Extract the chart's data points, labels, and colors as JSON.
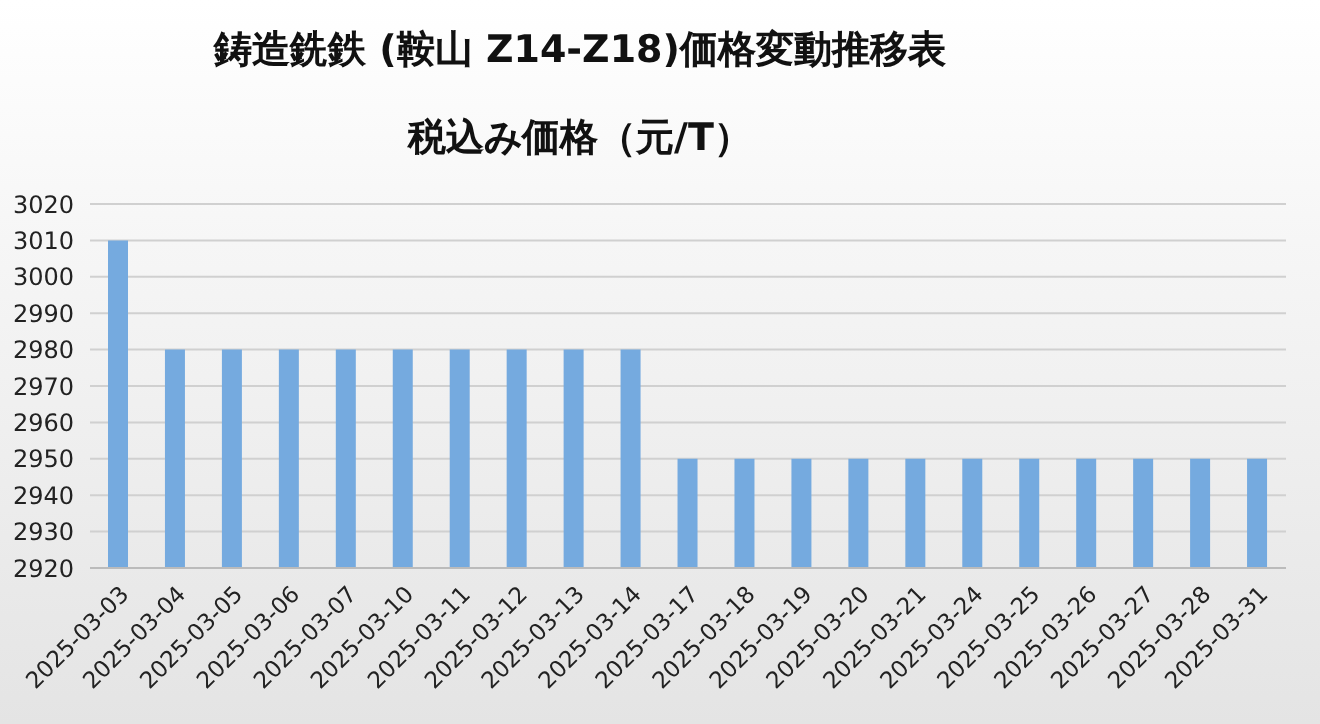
{
  "chart_data": {
    "type": "bar",
    "title": "鋳造銑鉄 (鞍山 Z14-Z18)価格変動推移表",
    "subtitle": "税込み価格（元/T）",
    "categories": [
      "2025-03-03",
      "2025-03-04",
      "2025-03-05",
      "2025-03-06",
      "2025-03-07",
      "2025-03-10",
      "2025-03-11",
      "2025-03-12",
      "2025-03-13",
      "2025-03-14",
      "2025-03-17",
      "2025-03-18",
      "2025-03-19",
      "2025-03-20",
      "2025-03-21",
      "2025-03-24",
      "2025-03-25",
      "2025-03-26",
      "2025-03-27",
      "2025-03-28",
      "2025-03-31"
    ],
    "values": [
      3010,
      2980,
      2980,
      2980,
      2980,
      2980,
      2980,
      2980,
      2980,
      2980,
      2950,
      2950,
      2950,
      2950,
      2950,
      2950,
      2950,
      2950,
      2950,
      2950,
      2950
    ],
    "color": "#75aadf",
    "ylim": [
      2920,
      3020
    ],
    "yticks": [
      2920,
      2930,
      2940,
      2950,
      2960,
      2970,
      2980,
      2990,
      3000,
      3010,
      3020
    ],
    "grid": "y"
  }
}
